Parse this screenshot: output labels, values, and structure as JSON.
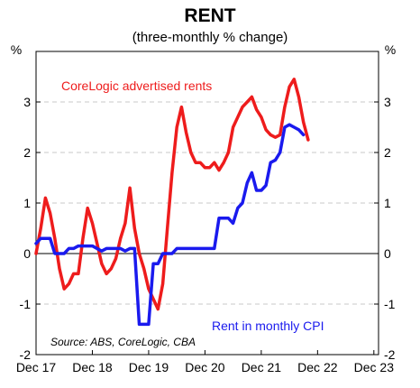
{
  "chart_data": {
    "type": "line",
    "title": "RENT",
    "subtitle": "(three-monthly % change)",
    "ylabel_left": "%",
    "ylabel_right": "%",
    "ylim": [
      -2,
      4
    ],
    "y_ticks": [
      -2,
      -1,
      0,
      1,
      2,
      3
    ],
    "xlim": [
      2017.917,
      2024.0
    ],
    "x_ticks": [
      {
        "label": "Dec 17",
        "x": 2017.917
      },
      {
        "label": "Dec 18",
        "x": 2018.917
      },
      {
        "label": "Dec 19",
        "x": 2019.917
      },
      {
        "label": "Dec 20",
        "x": 2020.917
      },
      {
        "label": "Dec 21",
        "x": 2021.917
      },
      {
        "label": "Dec 22",
        "x": 2022.917
      },
      {
        "label": "Dec 23",
        "x": 2023.917
      }
    ],
    "grid": "horizontal dashed",
    "series": [
      {
        "name": "CoreLogic advertised rents",
        "color": "#ee1c1c",
        "points": [
          [
            2017.917,
            0.0
          ],
          [
            2018.0,
            0.5
          ],
          [
            2018.083,
            1.1
          ],
          [
            2018.167,
            0.8
          ],
          [
            2018.25,
            0.3
          ],
          [
            2018.333,
            -0.3
          ],
          [
            2018.417,
            -0.7
          ],
          [
            2018.5,
            -0.6
          ],
          [
            2018.583,
            -0.4
          ],
          [
            2018.667,
            -0.4
          ],
          [
            2018.75,
            0.3
          ],
          [
            2018.833,
            0.9
          ],
          [
            2018.917,
            0.6
          ],
          [
            2019.0,
            0.2
          ],
          [
            2019.083,
            -0.2
          ],
          [
            2019.167,
            -0.4
          ],
          [
            2019.25,
            -0.3
          ],
          [
            2019.333,
            -0.1
          ],
          [
            2019.417,
            0.3
          ],
          [
            2019.5,
            0.6
          ],
          [
            2019.583,
            1.3
          ],
          [
            2019.667,
            0.5
          ],
          [
            2019.75,
            0.0
          ],
          [
            2019.833,
            -0.3
          ],
          [
            2019.917,
            -0.7
          ],
          [
            2020.0,
            -0.9
          ],
          [
            2020.083,
            -1.1
          ],
          [
            2020.167,
            -0.6
          ],
          [
            2020.25,
            0.5
          ],
          [
            2020.333,
            1.6
          ],
          [
            2020.417,
            2.5
          ],
          [
            2020.5,
            2.9
          ],
          [
            2020.583,
            2.4
          ],
          [
            2020.667,
            2.0
          ],
          [
            2020.75,
            1.8
          ],
          [
            2020.833,
            1.8
          ],
          [
            2020.917,
            1.7
          ],
          [
            2021.0,
            1.7
          ],
          [
            2021.083,
            1.8
          ],
          [
            2021.167,
            1.65
          ],
          [
            2021.25,
            1.8
          ],
          [
            2021.333,
            2.0
          ],
          [
            2021.417,
            2.5
          ],
          [
            2021.5,
            2.7
          ],
          [
            2021.583,
            2.9
          ],
          [
            2021.667,
            3.0
          ],
          [
            2021.75,
            3.1
          ],
          [
            2021.833,
            2.85
          ],
          [
            2021.917,
            2.7
          ],
          [
            2022.0,
            2.45
          ],
          [
            2022.083,
            2.35
          ],
          [
            2022.167,
            2.3
          ],
          [
            2022.25,
            2.35
          ],
          [
            2022.333,
            2.9
          ],
          [
            2022.417,
            3.3
          ],
          [
            2022.5,
            3.45
          ],
          [
            2022.583,
            3.1
          ],
          [
            2022.667,
            2.6
          ],
          [
            2022.75,
            2.25
          ]
        ]
      },
      {
        "name": "Rent in monthly CPI",
        "color": "#1a1aee",
        "points": [
          [
            2017.917,
            0.2
          ],
          [
            2018.0,
            0.3
          ],
          [
            2018.167,
            0.3
          ],
          [
            2018.25,
            0.0
          ],
          [
            2018.417,
            0.0
          ],
          [
            2018.5,
            0.1
          ],
          [
            2018.583,
            0.1
          ],
          [
            2018.667,
            0.15
          ],
          [
            2018.917,
            0.15
          ],
          [
            2019.0,
            0.1
          ],
          [
            2019.083,
            0.05
          ],
          [
            2019.167,
            0.1
          ],
          [
            2019.417,
            0.1
          ],
          [
            2019.5,
            0.05
          ],
          [
            2019.583,
            0.1
          ],
          [
            2019.667,
            0.1
          ],
          [
            2019.75,
            -1.4
          ],
          [
            2019.917,
            -1.4
          ],
          [
            2020.0,
            -0.2
          ],
          [
            2020.083,
            -0.2
          ],
          [
            2020.167,
            0.0
          ],
          [
            2020.333,
            0.0
          ],
          [
            2020.417,
            0.1
          ],
          [
            2020.583,
            0.1
          ],
          [
            2020.917,
            0.1
          ],
          [
            2021.083,
            0.1
          ],
          [
            2021.167,
            0.7
          ],
          [
            2021.333,
            0.7
          ],
          [
            2021.417,
            0.6
          ],
          [
            2021.5,
            0.9
          ],
          [
            2021.583,
            1.0
          ],
          [
            2021.667,
            1.4
          ],
          [
            2021.75,
            1.6
          ],
          [
            2021.833,
            1.25
          ],
          [
            2021.917,
            1.25
          ],
          [
            2022.0,
            1.35
          ],
          [
            2022.083,
            1.8
          ],
          [
            2022.167,
            1.85
          ],
          [
            2022.25,
            2.0
          ],
          [
            2022.333,
            2.5
          ],
          [
            2022.417,
            2.55
          ],
          [
            2022.5,
            2.5
          ],
          [
            2022.583,
            2.45
          ],
          [
            2022.667,
            2.35
          ]
        ]
      }
    ],
    "annotations": [
      {
        "text": "CoreLogic advertised rents",
        "color": "#ee1c1c"
      },
      {
        "text": "Rent in monthly CPI",
        "color": "#1a1aee"
      },
      {
        "text": "Source: ABS, CoreLogic, CBA",
        "color": "#000000"
      }
    ]
  }
}
